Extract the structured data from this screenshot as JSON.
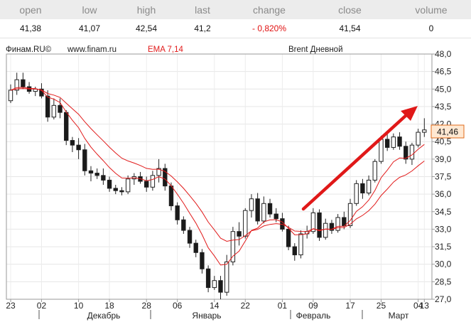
{
  "quote_table": {
    "headers": [
      "open",
      "low",
      "high",
      "last",
      "change",
      "close",
      "volume"
    ],
    "values": [
      "41,38",
      "41,07",
      "42,54",
      "41,2",
      "- 0,820%",
      "41,54",
      "0"
    ],
    "negative_color": "#e01010"
  },
  "chart_data": {
    "type": "candlestick",
    "source_label": "Финам.RU©",
    "site_label": "www.finam.ru",
    "indicator_label": "EMA 7,14",
    "indicator_color": "#e11b1b",
    "title": "Brent Дневной",
    "last_price_label": "41,46",
    "ylim": [
      27.0,
      48.0
    ],
    "y_ticks": [
      "48,0",
      "46,5",
      "45,0",
      "43,5",
      "42,0",
      "40,5",
      "39,0",
      "37,5",
      "36,0",
      "34,5",
      "33,0",
      "31,5",
      "30,0",
      "28,5",
      "27,0"
    ],
    "x_tick_labels": [
      "23",
      "02",
      "10",
      "18",
      "28",
      "06",
      "14",
      "22",
      "01",
      "09",
      "17",
      "25",
      "04",
      "13"
    ],
    "month_labels": [
      "Декабрь",
      "Январь",
      "Февраль",
      "Март"
    ],
    "annotation": "trend-arrow",
    "candles": [
      [
        44.0,
        45.4,
        43.8,
        44.9
      ],
      [
        44.9,
        46.4,
        44.5,
        45.8
      ],
      [
        45.8,
        46.4,
        45.0,
        45.2
      ],
      [
        45.2,
        45.6,
        44.6,
        44.8
      ],
      [
        44.8,
        45.2,
        44.4,
        45.0
      ],
      [
        45.0,
        45.5,
        44.2,
        44.4
      ],
      [
        44.4,
        44.9,
        42.2,
        42.6
      ],
      [
        42.6,
        44.2,
        42.4,
        43.6
      ],
      [
        43.6,
        44.2,
        42.5,
        43.0
      ],
      [
        43.0,
        43.2,
        40.2,
        40.6
      ],
      [
        40.6,
        40.9,
        39.6,
        40.2
      ],
      [
        40.2,
        40.8,
        39.0,
        39.8
      ],
      [
        39.8,
        40.3,
        37.6,
        38.0
      ],
      [
        38.0,
        38.4,
        37.1,
        37.8
      ],
      [
        37.8,
        38.2,
        37.3,
        37.6
      ],
      [
        37.6,
        38.2,
        36.8,
        37.2
      ],
      [
        37.2,
        37.5,
        36.2,
        36.5
      ],
      [
        36.5,
        36.8,
        36.0,
        36.3
      ],
      [
        36.3,
        36.6,
        35.9,
        36.2
      ],
      [
        36.2,
        37.6,
        36.0,
        37.3
      ],
      [
        37.3,
        37.8,
        36.8,
        37.5
      ],
      [
        37.5,
        37.9,
        36.9,
        37.1
      ],
      [
        37.1,
        37.5,
        36.2,
        36.6
      ],
      [
        36.6,
        38.0,
        36.3,
        37.6
      ],
      [
        37.6,
        39.0,
        37.0,
        38.2
      ],
      [
        38.2,
        38.6,
        36.3,
        36.7
      ],
      [
        36.7,
        37.0,
        34.6,
        35.0
      ],
      [
        35.0,
        35.3,
        33.4,
        33.8
      ],
      [
        33.8,
        34.1,
        32.6,
        32.9
      ],
      [
        32.9,
        33.2,
        31.4,
        31.8
      ],
      [
        31.8,
        32.1,
        30.6,
        31.0
      ],
      [
        31.0,
        31.3,
        29.2,
        29.6
      ],
      [
        29.6,
        29.9,
        27.6,
        28.0
      ],
      [
        28.0,
        29.0,
        27.8,
        28.6
      ],
      [
        28.6,
        29.0,
        27.0,
        27.6
      ],
      [
        27.6,
        30.8,
        27.3,
        30.2
      ],
      [
        30.2,
        33.2,
        29.9,
        32.8
      ],
      [
        32.8,
        33.6,
        31.6,
        32.4
      ],
      [
        32.4,
        34.8,
        32.2,
        34.6
      ],
      [
        34.6,
        36.0,
        34.0,
        35.6
      ],
      [
        35.6,
        36.1,
        33.4,
        33.7
      ],
      [
        33.7,
        35.8,
        33.5,
        35.2
      ],
      [
        35.2,
        35.6,
        34.0,
        34.3
      ],
      [
        34.3,
        34.8,
        33.6,
        33.9
      ],
      [
        33.9,
        34.4,
        32.8,
        33.0
      ],
      [
        33.0,
        33.3,
        31.2,
        31.5
      ],
      [
        31.5,
        31.8,
        30.3,
        30.8
      ],
      [
        30.8,
        32.9,
        30.5,
        32.6
      ],
      [
        32.6,
        33.3,
        32.2,
        32.8
      ],
      [
        32.8,
        34.8,
        32.6,
        34.4
      ],
      [
        34.4,
        34.7,
        32.0,
        32.3
      ],
      [
        32.3,
        33.9,
        32.1,
        33.5
      ],
      [
        33.5,
        33.8,
        32.6,
        32.9
      ],
      [
        32.9,
        34.3,
        32.7,
        34.0
      ],
      [
        34.0,
        34.5,
        33.0,
        33.3
      ],
      [
        33.3,
        35.6,
        33.1,
        35.2
      ],
      [
        35.2,
        37.2,
        35.0,
        36.9
      ],
      [
        36.9,
        37.3,
        35.6,
        36.1
      ],
      [
        36.1,
        37.6,
        35.9,
        37.2
      ],
      [
        37.2,
        39.0,
        37.0,
        38.8
      ],
      [
        38.8,
        41.0,
        38.6,
        40.7
      ],
      [
        40.7,
        41.4,
        39.7,
        40.0
      ],
      [
        40.0,
        41.2,
        39.8,
        40.9
      ],
      [
        40.9,
        41.3,
        39.8,
        40.1
      ],
      [
        40.1,
        40.5,
        38.6,
        39.0
      ],
      [
        39.0,
        40.4,
        38.5,
        40.2
      ],
      [
        40.2,
        41.6,
        40.0,
        41.3
      ],
      [
        41.3,
        42.5,
        40.9,
        41.5
      ]
    ]
  }
}
